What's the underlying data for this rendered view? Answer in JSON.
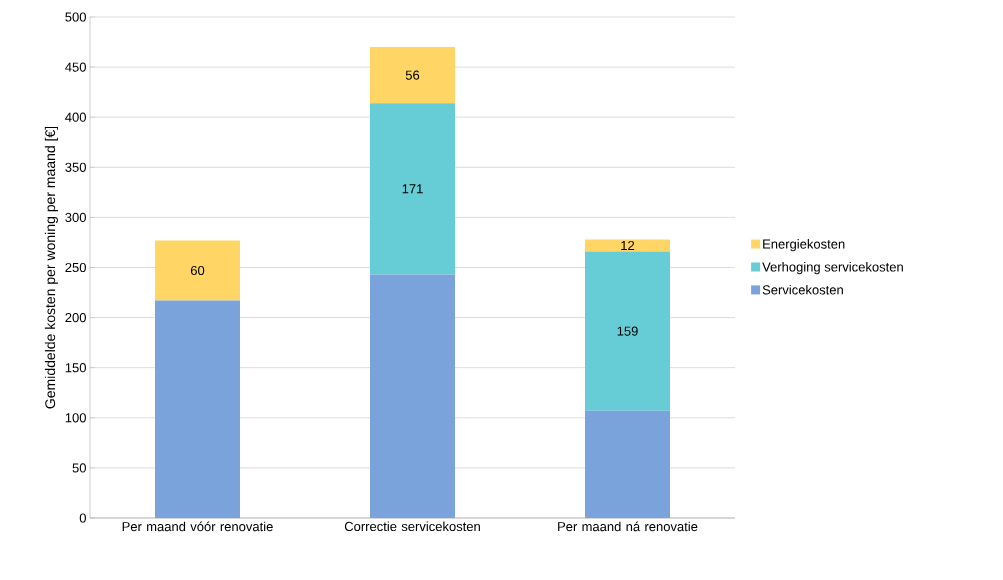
{
  "chart_data": {
    "type": "bar",
    "stacked": true,
    "ylabel": "Gemiddelde kosten per woning per maand [€]",
    "categories": [
      "Per maand vóór renovatie",
      "Correctie servicekosten",
      "Per maand ná renovatie"
    ],
    "series": [
      {
        "name": "Servicekosten",
        "color": "#7ba3db",
        "values": [
          217,
          243,
          107
        ]
      },
      {
        "name": "Verhoging servicekosten",
        "color": "#66ccd6",
        "values": [
          null,
          171,
          159
        ],
        "value_labels": [
          null,
          "171",
          "159"
        ]
      },
      {
        "name": "Energiekosten",
        "color": "#ffd666",
        "values": [
          60,
          56,
          12
        ],
        "value_labels": [
          "60",
          "56",
          "12"
        ]
      }
    ],
    "ylim": [
      0,
      500
    ],
    "yticks": [
      0,
      50,
      100,
      150,
      200,
      250,
      300,
      350,
      400,
      450,
      500
    ],
    "grid": "y",
    "legend": "right"
  }
}
